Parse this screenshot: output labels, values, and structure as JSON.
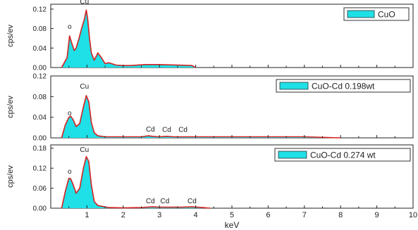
{
  "chart_data": [
    {
      "type": "area",
      "legend": "CuO",
      "ylabel": "cps/ev",
      "ylim": [
        0,
        0.13
      ],
      "yticks": [
        0.0,
        0.04,
        0.08,
        0.12
      ],
      "ytick_labels": [
        "0.00",
        "0.04",
        "0.08",
        "0.12"
      ],
      "xlim": [
        0,
        10
      ],
      "annotations": [
        {
          "text": "o",
          "x": 0.52,
          "y": 0.074
        },
        {
          "text": "Cu",
          "x": 0.93,
          "y": 0.125
        }
      ],
      "x": [
        0.3,
        0.45,
        0.52,
        0.58,
        0.65,
        0.7,
        0.78,
        0.85,
        0.93,
        0.98,
        1.02,
        1.07,
        1.12,
        1.2,
        1.3,
        1.4,
        1.5,
        1.6,
        1.8,
        2.0,
        2.2,
        2.6,
        3.0,
        3.5,
        3.9,
        4.0
      ],
      "y": [
        0.0,
        0.02,
        0.065,
        0.05,
        0.035,
        0.04,
        0.06,
        0.08,
        0.1,
        0.118,
        0.1,
        0.06,
        0.03,
        0.015,
        0.03,
        0.02,
        0.008,
        0.01,
        0.005,
        0.004,
        0.004,
        0.006,
        0.006,
        0.005,
        0.004,
        0.0
      ]
    },
    {
      "type": "area",
      "legend": "CuO-Cd 0.198wt",
      "ylabel": "cps/ev",
      "ylim": [
        0,
        0.12
      ],
      "yticks": [
        0.0,
        0.04,
        0.08,
        0.12
      ],
      "ytick_labels": [
        "0.00",
        "0.04",
        "0.08",
        "0.12"
      ],
      "xlim": [
        0,
        10
      ],
      "annotations": [
        {
          "text": "o",
          "x": 0.52,
          "y": 0.038
        },
        {
          "text": "Cu",
          "x": 0.93,
          "y": 0.09
        },
        {
          "text": "Cd",
          "x": 2.75,
          "y": 0.007
        },
        {
          "text": "Cd",
          "x": 3.2,
          "y": 0.006
        },
        {
          "text": "Cd",
          "x": 3.65,
          "y": 0.006
        }
      ],
      "x": [
        0.3,
        0.4,
        0.5,
        0.55,
        0.62,
        0.7,
        0.8,
        0.9,
        0.98,
        1.05,
        1.12,
        1.2,
        1.3,
        1.5,
        2.0,
        2.5,
        2.7,
        2.8,
        3.0,
        3.2,
        3.4,
        3.7,
        4.0,
        5.0,
        6.0,
        7.0,
        8.0
      ],
      "y": [
        0.0,
        0.025,
        0.04,
        0.042,
        0.035,
        0.022,
        0.028,
        0.06,
        0.082,
        0.07,
        0.03,
        0.01,
        0.004,
        0.002,
        0.002,
        0.002,
        0.004,
        0.003,
        0.002,
        0.003,
        0.002,
        0.002,
        0.002,
        0.002,
        0.002,
        0.002,
        0.0
      ]
    },
    {
      "type": "area",
      "legend": "CuO-Cd 0.274 wt",
      "ylabel": "cps/ev",
      "ylim": [
        0,
        0.19
      ],
      "yticks": [
        0.0,
        0.06,
        0.12,
        0.18
      ],
      "ytick_labels": [
        "0.00",
        "0.06",
        "0.12",
        "0.18"
      ],
      "xlim": [
        0,
        10
      ],
      "xticks": [
        1,
        2,
        3,
        4,
        5,
        6,
        7,
        8,
        9,
        10
      ],
      "xtick_labels": [
        "1",
        "2",
        "3",
        "4",
        "5",
        "6",
        "7",
        "8",
        "9",
        "10"
      ],
      "xlabel": "keV",
      "annotations": [
        {
          "text": "o",
          "x": 0.52,
          "y": 0.095
        },
        {
          "text": "Cu",
          "x": 0.93,
          "y": 0.16
        },
        {
          "text": "Cd",
          "x": 2.75,
          "y": 0.006
        },
        {
          "text": "Cd",
          "x": 3.15,
          "y": 0.006
        },
        {
          "text": "Cd",
          "x": 3.9,
          "y": 0.006
        }
      ],
      "x": [
        0.3,
        0.4,
        0.5,
        0.55,
        0.62,
        0.7,
        0.8,
        0.9,
        0.98,
        1.05,
        1.12,
        1.2,
        1.3,
        1.5,
        1.6,
        2.0,
        2.5,
        2.8,
        3.0,
        3.3,
        3.6,
        3.9,
        4.2,
        4.4
      ],
      "y": [
        0.0,
        0.05,
        0.09,
        0.088,
        0.07,
        0.045,
        0.06,
        0.12,
        0.155,
        0.14,
        0.07,
        0.02,
        0.008,
        0.004,
        0.002,
        0.001,
        0.002,
        0.004,
        0.003,
        0.003,
        0.003,
        0.004,
        0.002,
        0.0
      ]
    }
  ]
}
